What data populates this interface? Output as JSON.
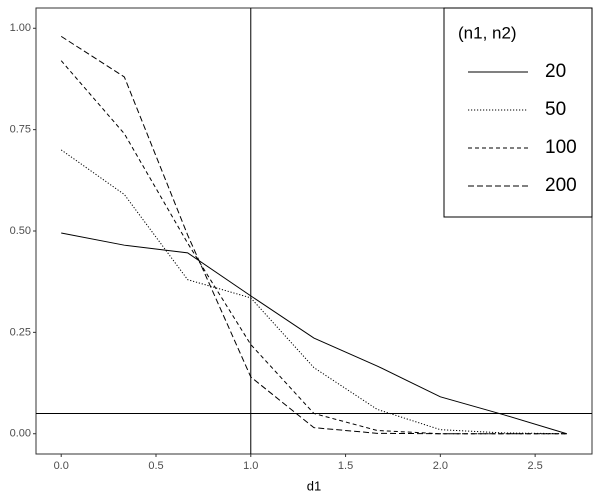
{
  "chart_data": {
    "type": "line",
    "x_label": "d1",
    "x": [
      0,
      0.333,
      0.667,
      1,
      1.333,
      1.667,
      2,
      2.333,
      2.667
    ],
    "series": [
      {
        "name": "20",
        "color": "#000000",
        "dash": "solid",
        "values": [
          0.495,
          0.465,
          0.446,
          0.34,
          0.236,
          0.167,
          0.091,
          0.047,
          0
        ]
      },
      {
        "name": "50",
        "color": "#000000",
        "dash": "dotted",
        "values": [
          0.7,
          0.59,
          0.38,
          0.335,
          0.163,
          0.06,
          0.01,
          0.002,
          0
        ]
      },
      {
        "name": "100",
        "color": "#000000",
        "dash": "dashed",
        "values": [
          0.92,
          0.74,
          0.47,
          0.22,
          0.05,
          0.008,
          0,
          0,
          0
        ]
      },
      {
        "name": "200",
        "color": "#000000",
        "dash": "longdash",
        "values": [
          0.98,
          0.88,
          0.49,
          0.14,
          0.015,
          0.001,
          0,
          0,
          0
        ]
      }
    ],
    "legend_title": "(n1, n2)",
    "legend_position": "top-right",
    "vline": 1,
    "hline": 0.05,
    "xlim": [
      -0.133,
      2.8
    ],
    "ylim": [
      -0.05,
      1.05
    ],
    "xticks": [
      {
        "value": 0,
        "label": "0.0"
      },
      {
        "value": 0.5,
        "label": "0.5"
      },
      {
        "value": 1,
        "label": "1.0"
      },
      {
        "value": 1.5,
        "label": "1.5"
      },
      {
        "value": 2,
        "label": "2.0"
      },
      {
        "value": 2.5,
        "label": "2.5"
      }
    ],
    "yticks": [
      {
        "value": 0,
        "label": "0.00"
      },
      {
        "value": 0.25,
        "label": "0.25"
      },
      {
        "value": 0.5,
        "label": "0.50"
      },
      {
        "value": 0.75,
        "label": "0.75"
      },
      {
        "value": 1,
        "label": "1.00"
      }
    ],
    "grid": false
  }
}
